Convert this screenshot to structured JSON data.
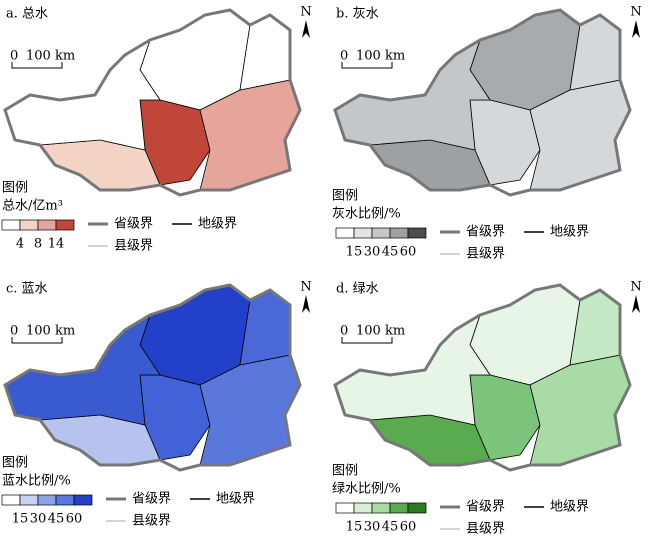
{
  "panels": [
    {
      "title": "a. 总水",
      "north": "N",
      "scale": {
        "zero": "0",
        "distance": "100 km"
      },
      "legend": {
        "heading": "图例",
        "title": "总水/亿m³",
        "classes": [
          4,
          8,
          14
        ]
      },
      "lines": {
        "province": "省级界",
        "prefecture": "地级界",
        "county": "县级界"
      }
    },
    {
      "title": "b. 灰水",
      "north": "N",
      "scale": {
        "zero": "0",
        "distance": "100 km"
      },
      "legend": {
        "heading": "图例",
        "title": "灰水比例/%",
        "classes": [
          15,
          30,
          45,
          60
        ]
      },
      "lines": {
        "province": "省级界",
        "prefecture": "地级界",
        "county": "县级界"
      }
    },
    {
      "title": "c. 蓝水",
      "north": "N",
      "scale": {
        "zero": "0",
        "distance": "100 km"
      },
      "legend": {
        "heading": "图例",
        "title": "蓝水比例/%",
        "classes": [
          15,
          30,
          45,
          60
        ]
      },
      "lines": {
        "province": "省级界",
        "prefecture": "地级界",
        "county": "县级界"
      }
    },
    {
      "title": "d. 绿水",
      "north": "N",
      "scale": {
        "zero": "0",
        "distance": "100 km"
      },
      "legend": {
        "heading": "图例",
        "title": "绿水比例/%",
        "classes": [
          15,
          30,
          45,
          60
        ]
      },
      "lines": {
        "province": "省级界",
        "prefecture": "地级界",
        "county": "县级界"
      }
    }
  ]
}
